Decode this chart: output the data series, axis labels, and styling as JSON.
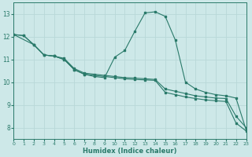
{
  "background_color": "#cde8e8",
  "grid_color": "#b8d8d8",
  "line_color": "#2a7a6a",
  "xlabel": "Humidex (Indice chaleur)",
  "xlim": [
    0,
    23
  ],
  "ylim": [
    7.5,
    13.5
  ],
  "yticks": [
    8,
    9,
    10,
    11,
    12,
    13
  ],
  "xticks": [
    0,
    1,
    2,
    3,
    4,
    5,
    6,
    7,
    8,
    9,
    10,
    11,
    12,
    13,
    14,
    15,
    16,
    17,
    18,
    19,
    20,
    21,
    22,
    23
  ],
  "curve1_x": [
    0,
    1,
    2,
    3,
    4,
    5,
    6,
    7,
    8,
    9,
    10,
    11,
    12,
    13,
    14,
    15,
    16,
    17,
    18,
    19,
    20,
    21,
    22,
    23
  ],
  "curve1_y": [
    12.1,
    12.05,
    11.65,
    11.2,
    11.15,
    11.05,
    10.6,
    10.4,
    10.35,
    10.3,
    10.25,
    10.2,
    10.18,
    10.15,
    10.12,
    9.7,
    9.6,
    9.5,
    9.4,
    9.35,
    9.3,
    9.28,
    8.5,
    8.0
  ],
  "curve2_x": [
    0,
    2,
    3,
    4,
    5,
    6,
    7,
    8,
    9,
    10,
    11,
    12,
    13,
    14,
    15,
    16,
    17,
    18,
    19,
    20,
    21,
    22,
    23
  ],
  "curve2_y": [
    12.1,
    11.65,
    11.2,
    11.15,
    11.0,
    10.55,
    10.35,
    10.25,
    10.2,
    11.1,
    11.4,
    12.25,
    13.05,
    13.1,
    12.9,
    11.85,
    10.0,
    9.7,
    9.55,
    9.45,
    9.4,
    9.3,
    7.9
  ],
  "curve3_x": [
    0,
    1,
    2,
    3,
    4,
    5,
    6,
    7,
    8,
    9,
    10,
    11,
    12,
    13,
    14,
    15,
    16,
    17,
    18,
    19,
    20,
    21,
    22,
    23
  ],
  "curve3_y": [
    12.1,
    12.05,
    11.65,
    11.2,
    11.15,
    11.0,
    10.55,
    10.35,
    10.3,
    10.25,
    10.2,
    10.15,
    10.12,
    10.1,
    10.08,
    9.55,
    9.45,
    9.35,
    9.28,
    9.22,
    9.18,
    9.15,
    8.2,
    7.85
  ]
}
